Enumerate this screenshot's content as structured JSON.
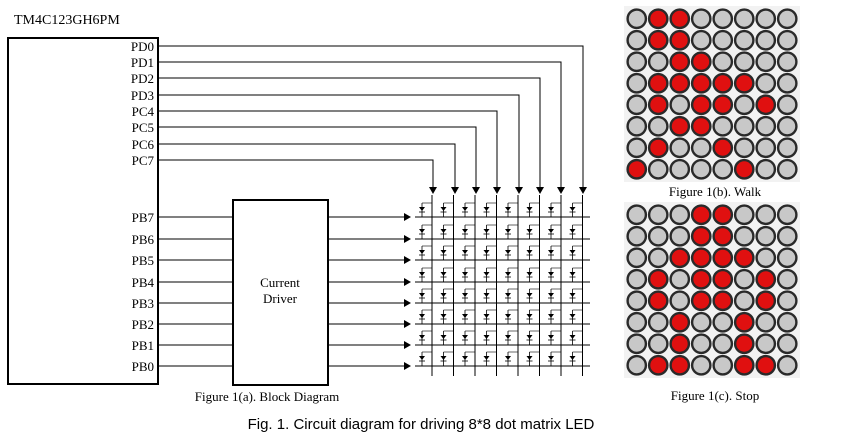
{
  "mcu": {
    "name": "TM4C123GH6PM",
    "column_pins": [
      "PD0",
      "PD1",
      "PD2",
      "PD3",
      "PC4",
      "PC5",
      "PC6",
      "PC7"
    ],
    "row_pins": [
      "PB7",
      "PB6",
      "PB5",
      "PB4",
      "PB3",
      "PB2",
      "PB1",
      "PB0"
    ]
  },
  "driver": {
    "label_line1": "Current",
    "label_line2": "Driver"
  },
  "captions": {
    "block_diagram": "Figure 1(a). Block Diagram",
    "walk": "Figure 1(b). Walk",
    "stop": "Figure 1(c). Stop",
    "figure": "Fig. 1. Circuit diagram for driving 8*8 dot matrix LED"
  },
  "colors": {
    "led_on": "#e01010",
    "led_off": "#c8c8c8",
    "led_rim": "#2a2a2a",
    "line": "#000000"
  },
  "patterns": {
    "walk": [
      [
        0,
        1,
        1,
        0,
        0,
        0,
        0,
        0
      ],
      [
        0,
        1,
        1,
        0,
        0,
        0,
        0,
        0
      ],
      [
        0,
        0,
        1,
        1,
        0,
        0,
        0,
        0
      ],
      [
        0,
        1,
        1,
        1,
        1,
        1,
        0,
        0
      ],
      [
        0,
        1,
        0,
        1,
        1,
        0,
        1,
        0
      ],
      [
        0,
        0,
        1,
        1,
        0,
        0,
        0,
        0
      ],
      [
        0,
        1,
        0,
        0,
        1,
        0,
        0,
        0
      ],
      [
        1,
        0,
        0,
        0,
        0,
        1,
        0,
        0
      ]
    ],
    "stop": [
      [
        0,
        0,
        0,
        1,
        1,
        0,
        0,
        0
      ],
      [
        0,
        0,
        0,
        1,
        1,
        0,
        0,
        0
      ],
      [
        0,
        0,
        1,
        1,
        1,
        1,
        0,
        0
      ],
      [
        0,
        1,
        0,
        1,
        1,
        0,
        1,
        0
      ],
      [
        0,
        1,
        0,
        1,
        1,
        0,
        1,
        0
      ],
      [
        0,
        0,
        1,
        0,
        0,
        1,
        0,
        0
      ],
      [
        0,
        0,
        1,
        0,
        0,
        1,
        0,
        0
      ],
      [
        0,
        1,
        1,
        0,
        0,
        1,
        1,
        0
      ]
    ]
  }
}
